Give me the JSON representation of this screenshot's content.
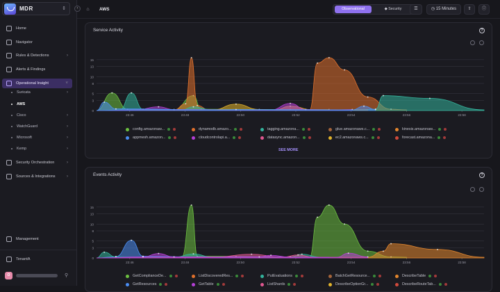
{
  "app": {
    "brand": "MDR",
    "page_title": "AWS"
  },
  "sidebar": {
    "items": [
      {
        "label": "Home",
        "y": 34
      },
      {
        "label": "Navigator",
        "y": 54
      },
      {
        "label": "Rules & Detections",
        "y": 73,
        "chev": ">"
      },
      {
        "label": "Alerts & Findings",
        "y": 93
      },
      {
        "label": "Operational Insight",
        "y": 113,
        "chev": "v",
        "active": true
      }
    ],
    "subitems": [
      {
        "label": "Suricata",
        "y": 127,
        "chev": ">"
      },
      {
        "label": "AWS",
        "y": 144,
        "active": true
      },
      {
        "label": "Cisco",
        "y": 160,
        "chev": ">"
      },
      {
        "label": "WatchGuard",
        "y": 176,
        "chev": ">"
      },
      {
        "label": "Microsoft",
        "y": 192,
        "chev": ">"
      },
      {
        "label": "Kemp",
        "y": 208,
        "chev": ">"
      }
    ],
    "items2": [
      {
        "label": "Security Orchestration",
        "y": 227,
        "chev": ">"
      },
      {
        "label": "Sources & Integrations",
        "y": 247,
        "chev": ">"
      },
      {
        "label": "Management",
        "y": 337
      },
      {
        "label": "TenantA",
        "y": 366
      }
    ],
    "user_initial": "O"
  },
  "topbar": {
    "modes": [
      "Observational",
      "Security"
    ],
    "time_range": "15 Minutes"
  },
  "colors": {
    "accent": "#8f71ee",
    "bg": "#17171c"
  },
  "panels": [
    {
      "title": "Service Activity",
      "see_more": "SEE MORE",
      "legend": [
        {
          "label": "config.amazonaw...",
          "color": "#6cc040"
        },
        {
          "label": "dynamodb.amazo...",
          "color": "#e0702c"
        },
        {
          "label": "tagging.amazona...",
          "color": "#33b39c"
        },
        {
          "label": "glue.amazonaws.c...",
          "color": "#a5643a"
        },
        {
          "label": "kinesis.amazonaw...",
          "color": "#e3862d"
        },
        {
          "label": "appmesh.amazon...",
          "color": "#4a8df2"
        },
        {
          "label": "cloudcontrolapi.a...",
          "color": "#b43fd6"
        },
        {
          "label": "datasync.amazon...",
          "color": "#e0578f"
        },
        {
          "label": "ec2.amazonaws.c...",
          "color": "#e3b42b"
        },
        {
          "label": "forecast.amazona...",
          "color": "#d14a3c"
        }
      ]
    },
    {
      "title": "Events Activity",
      "legend": [
        {
          "label": "GetComplianceDe...",
          "color": "#6cc040"
        },
        {
          "label": "ListDiscoveredRes...",
          "color": "#e0702c"
        },
        {
          "label": "PutEvaluations",
          "color": "#33b39c"
        },
        {
          "label": "BatchGetResource...",
          "color": "#a5643a"
        },
        {
          "label": "DescribeTable",
          "color": "#e3862d"
        },
        {
          "label": "GetResources",
          "color": "#4a8df2"
        },
        {
          "label": "GetTable",
          "color": "#b43fd6"
        },
        {
          "label": "ListShards",
          "color": "#e0578f"
        },
        {
          "label": "DescribeOptionGr...",
          "color": "#e3b42b"
        },
        {
          "label": "DescribeRouteTab...",
          "color": "#d14a3c"
        }
      ]
    }
  ],
  "chart_data": [
    {
      "type": "area",
      "title": "Service Activity",
      "x": [
        "23:46",
        "23:48",
        "23:50",
        "23:52",
        "23:54",
        "23:56",
        "23:58"
      ],
      "y_ticks": [
        0,
        3,
        5,
        8,
        10,
        13,
        15
      ],
      "ylim": [
        0,
        16
      ],
      "series": [
        {
          "name": "config.amazonaw...",
          "color": "#6cc040",
          "points": [
            [
              0,
              0
            ],
            [
              0.04,
              5.2
            ],
            [
              0.08,
              0.4
            ],
            [
              0.2,
              0.2
            ],
            [
              0.25,
              4.4
            ],
            [
              0.27,
              0.4
            ],
            [
              0.5,
              0.3
            ],
            [
              0.6,
              0.3
            ]
          ]
        },
        {
          "name": "dynamodb.amazo...",
          "color": "#e0702c",
          "points": [
            [
              0,
              0
            ],
            [
              0.2,
              0.2
            ],
            [
              0.23,
              2
            ],
            [
              0.245,
              15.6
            ],
            [
              0.26,
              1.5
            ],
            [
              0.29,
              0.2
            ],
            [
              0.55,
              0.2
            ],
            [
              0.57,
              14
            ],
            [
              0.6,
              15.6
            ],
            [
              0.64,
              12
            ],
            [
              0.7,
              4
            ],
            [
              0.76,
              0.4
            ],
            [
              0.8,
              0.2
            ]
          ]
        },
        {
          "name": "tagging.amazona...",
          "color": "#33b39c",
          "points": [
            [
              0,
              0
            ],
            [
              0.06,
              0.2
            ],
            [
              0.09,
              5.2
            ],
            [
              0.12,
              0.4
            ],
            [
              0.22,
              0.2
            ],
            [
              0.25,
              1.1
            ],
            [
              0.3,
              0.2
            ],
            [
              0.68,
              0.2
            ],
            [
              0.72,
              0.4
            ],
            [
              0.74,
              4.4
            ],
            [
              0.86,
              3.6
            ],
            [
              1,
              0.2
            ]
          ]
        },
        {
          "name": "ec2.amazonaws.c...",
          "color": "#e3b42b",
          "points": [
            [
              0,
              0
            ],
            [
              0.3,
              0.2
            ],
            [
              0.36,
              1.9
            ],
            [
              0.42,
              0.3
            ],
            [
              0.46,
              0.2
            ],
            [
              0.5,
              1.3
            ],
            [
              0.56,
              0.2
            ],
            [
              0.64,
              0.2
            ],
            [
              0.7,
              0.2
            ]
          ]
        },
        {
          "name": "cloudcontrolapi.a...",
          "color": "#b43fd6",
          "points": [
            [
              0,
              0
            ],
            [
              0.1,
              0.2
            ],
            [
              0.16,
              1.1
            ],
            [
              0.2,
              0.3
            ],
            [
              0.45,
              0.2
            ],
            [
              0.5,
              2.1
            ],
            [
              0.54,
              0.3
            ],
            [
              0.62,
              0.2
            ],
            [
              0.66,
              0.3
            ]
          ]
        },
        {
          "name": "appmesh.amazon...",
          "color": "#4a8df2",
          "points": [
            [
              0,
              0
            ],
            [
              0.02,
              2.5
            ],
            [
              0.05,
              0.5
            ],
            [
              0.3,
              0.2
            ],
            [
              0.36,
              0.3
            ],
            [
              0.66,
              0.2
            ],
            [
              0.69,
              1.3
            ],
            [
              0.72,
              0.3
            ]
          ]
        }
      ]
    },
    {
      "type": "area",
      "title": "Events Activity",
      "x": [
        "23:46",
        "23:48",
        "23:50",
        "23:52",
        "23:54",
        "23:56",
        "23:58"
      ],
      "y_ticks": [
        0,
        3,
        5,
        8,
        10,
        13,
        15
      ],
      "ylim": [
        0,
        16
      ],
      "series": [
        {
          "name": "GetComplianceDe...",
          "color": "#6cc040",
          "points": [
            [
              0,
              0
            ],
            [
              0.22,
              0.2
            ],
            [
              0.245,
              15.6
            ],
            [
              0.26,
              0.5
            ],
            [
              0.55,
              0.2
            ],
            [
              0.57,
              12
            ],
            [
              0.6,
              15.6
            ],
            [
              0.64,
              10
            ],
            [
              0.7,
              2
            ],
            [
              0.76,
              0.3
            ],
            [
              0.8,
              0.2
            ]
          ]
        },
        {
          "name": "DescribeTable",
          "color": "#e3862d",
          "points": [
            [
              0,
              0
            ],
            [
              0.7,
              0.2
            ],
            [
              0.74,
              2
            ],
            [
              0.76,
              4.2
            ],
            [
              0.88,
              2.5
            ],
            [
              1,
              0.2
            ]
          ]
        },
        {
          "name": "GetResources",
          "color": "#4a8df2",
          "points": [
            [
              0,
              0
            ],
            [
              0.05,
              0.4
            ],
            [
              0.09,
              5.2
            ],
            [
              0.12,
              0.5
            ],
            [
              0.3,
              0.2
            ],
            [
              0.36,
              0.4
            ],
            [
              0.6,
              0.2
            ]
          ]
        },
        {
          "name": "PutEvaluations",
          "color": "#33b39c",
          "points": [
            [
              0,
              0
            ],
            [
              0.02,
              1.7
            ],
            [
              0.05,
              0.3
            ],
            [
              0.2,
              0.2
            ],
            [
              0.25,
              1.2
            ],
            [
              0.3,
              0.2
            ],
            [
              0.5,
              0.3
            ],
            [
              0.53,
              1.1
            ],
            [
              0.58,
              0.2
            ]
          ]
        },
        {
          "name": "ListShards",
          "color": "#e0578f",
          "points": [
            [
              0,
              0
            ],
            [
              0.3,
              0.2
            ],
            [
              0.4,
              1.1
            ],
            [
              0.48,
              0.2
            ],
            [
              0.52,
              0.9
            ],
            [
              0.56,
              0.2
            ],
            [
              0.6,
              0.2
            ]
          ]
        },
        {
          "name": "GetTable",
          "color": "#b43fd6",
          "points": [
            [
              0,
              0
            ],
            [
              0.12,
              0.3
            ],
            [
              0.16,
              1.3
            ],
            [
              0.2,
              0.3
            ],
            [
              0.42,
              0.3
            ],
            [
              0.45,
              0.8
            ],
            [
              0.5,
              0.2
            ],
            [
              0.62,
              0.2
            ],
            [
              0.65,
              1.4
            ],
            [
              0.7,
              0.3
            ]
          ]
        }
      ]
    }
  ]
}
